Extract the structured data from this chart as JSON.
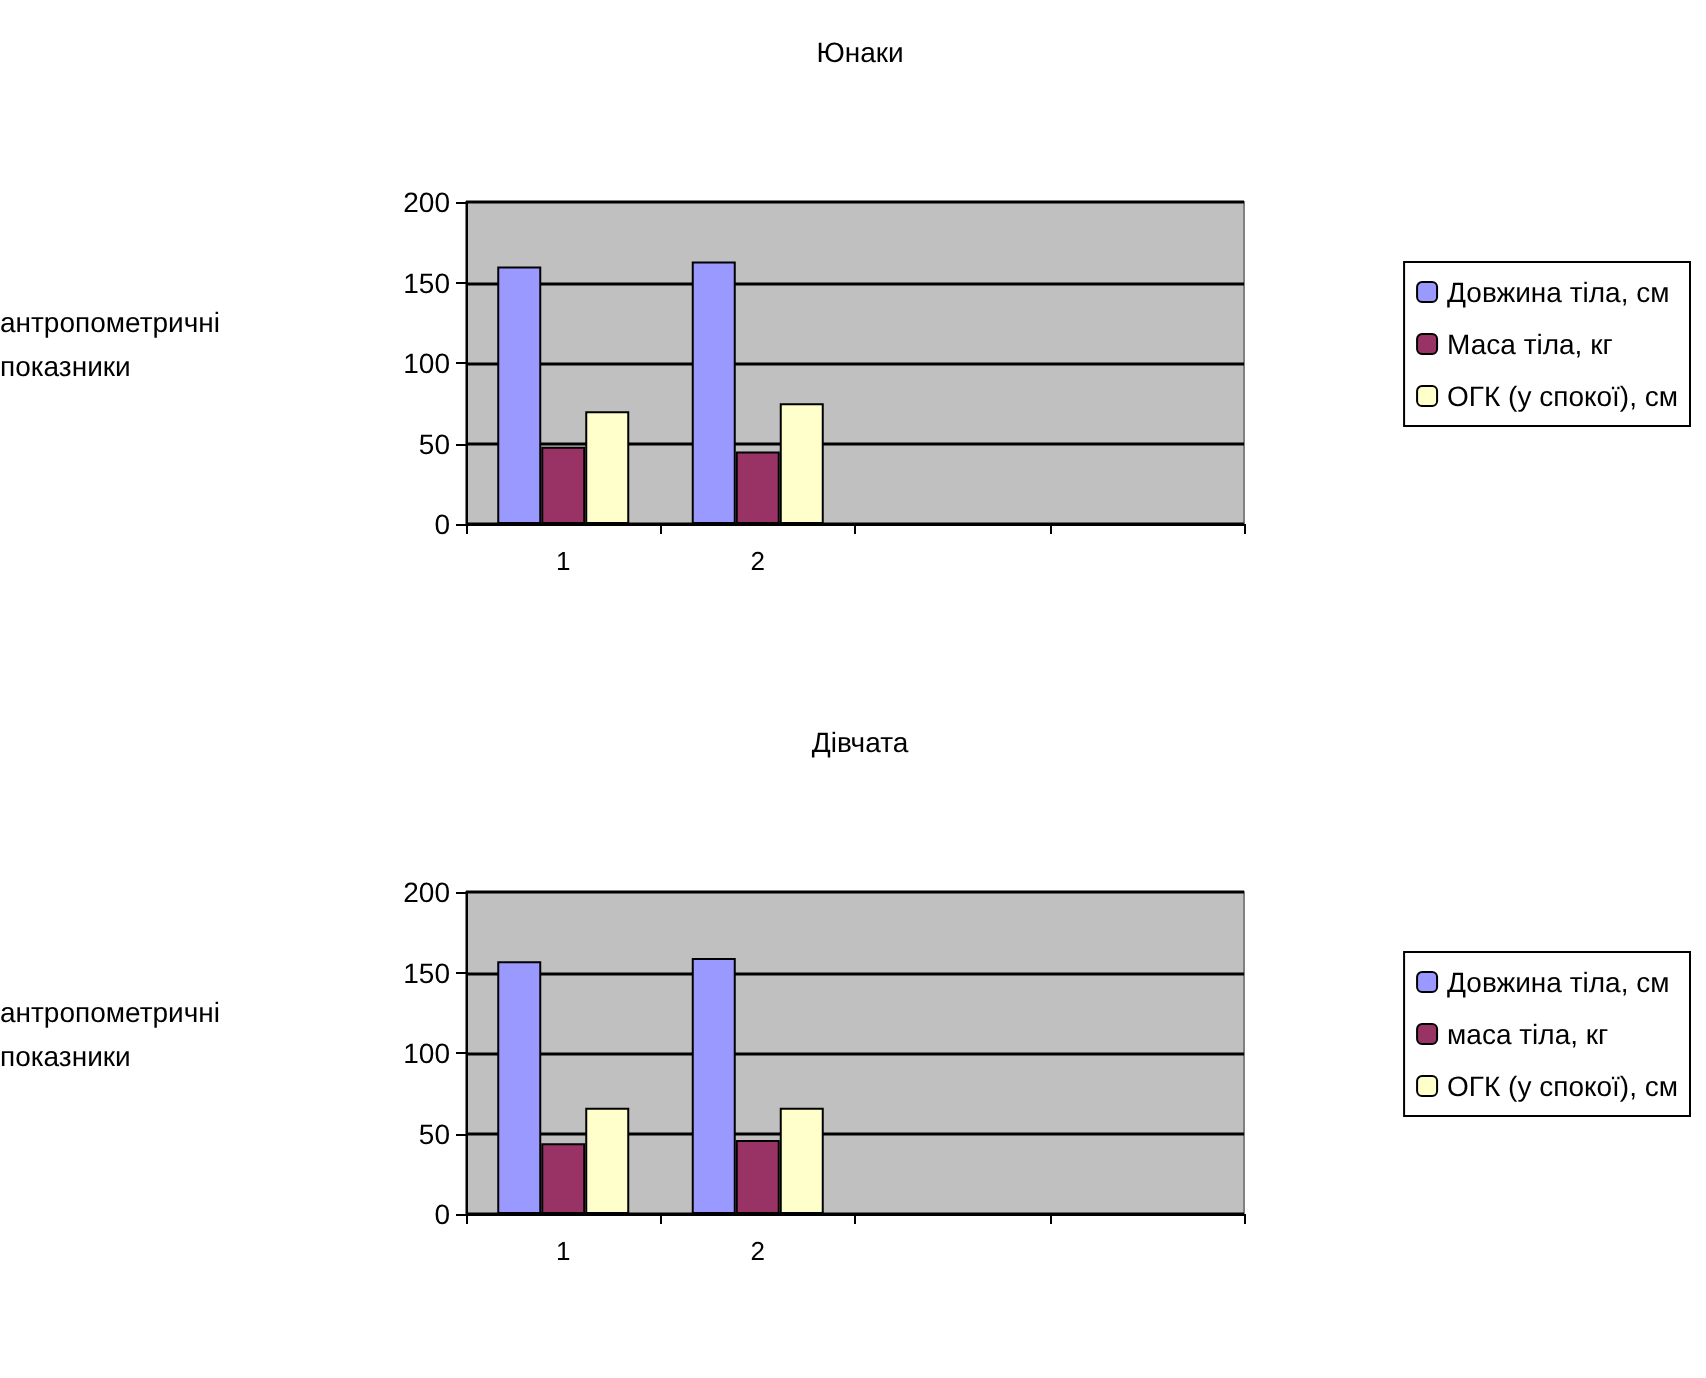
{
  "chart_data": [
    {
      "type": "bar",
      "title": "Юнаки",
      "ylabel": "антропометричні показники",
      "categories": [
        "1",
        "2",
        null,
        null
      ],
      "series": [
        {
          "name": "Довжина тіла, см",
          "color": "#9999ff",
          "values": [
            160,
            163,
            null,
            null
          ]
        },
        {
          "name": "Маса тіла, кг",
          "color": "#993366",
          "values": [
            48,
            45,
            null,
            null
          ]
        },
        {
          "name": "ОГК (у спокої), см",
          "color": "#ffffcc",
          "values": [
            70,
            75,
            null,
            null
          ]
        }
      ],
      "ylim": [
        0,
        200
      ],
      "yticks": [
        0,
        50,
        100,
        150,
        200
      ],
      "grid": "y",
      "legend": "right"
    },
    {
      "type": "bar",
      "title": "Дівчата",
      "ylabel": "антропометричні показники",
      "categories": [
        "1",
        "2",
        null,
        null
      ],
      "series": [
        {
          "name": "Довжина тіла, см",
          "color": "#9999ff",
          "values": [
            157,
            159,
            null,
            null
          ]
        },
        {
          "name": "маса тіла, кг",
          "color": "#993366",
          "values": [
            44,
            46,
            null,
            null
          ]
        },
        {
          "name": "ОГК (у спокої), см",
          "color": "#ffffcc",
          "values": [
            66,
            66,
            null,
            null
          ]
        }
      ],
      "ylim": [
        0,
        200
      ],
      "yticks": [
        0,
        50,
        100,
        150,
        200
      ],
      "grid": "y",
      "legend": "right"
    }
  ]
}
